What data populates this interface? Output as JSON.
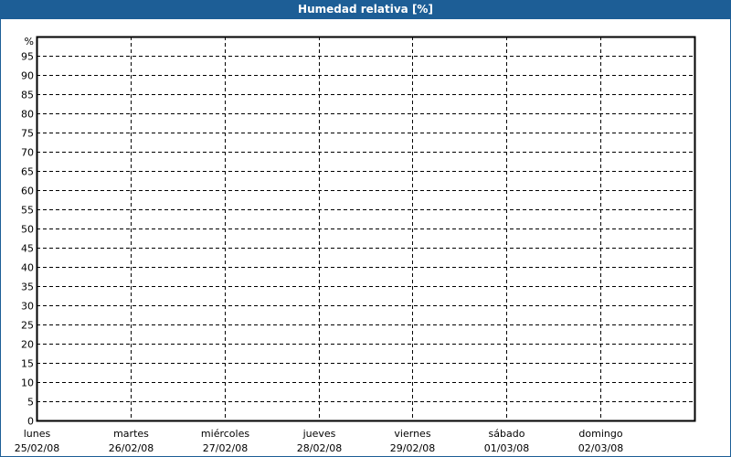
{
  "chart_data": {
    "type": "line",
    "title": "Humedad relativa [%]",
    "ylabel": "%",
    "ylim": [
      0,
      100
    ],
    "yticks": [
      0,
      5,
      10,
      15,
      20,
      25,
      30,
      35,
      40,
      45,
      50,
      55,
      60,
      65,
      70,
      75,
      80,
      85,
      90,
      95
    ],
    "xticks": [
      {
        "day": "lunes",
        "date": "25/02/08"
      },
      {
        "day": "martes",
        "date": "26/02/08"
      },
      {
        "day": "miércoles",
        "date": "27/02/08"
      },
      {
        "day": "jueves",
        "date": "28/02/08"
      },
      {
        "day": "viernes",
        "date": "29/02/08"
      },
      {
        "day": "sábado",
        "date": "01/03/08"
      },
      {
        "day": "domingo",
        "date": "02/03/08"
      }
    ],
    "xlim_days": 7,
    "grid": true,
    "series": [],
    "colors": {
      "title_bar": "#1d5e96",
      "grid": "#000000"
    }
  }
}
